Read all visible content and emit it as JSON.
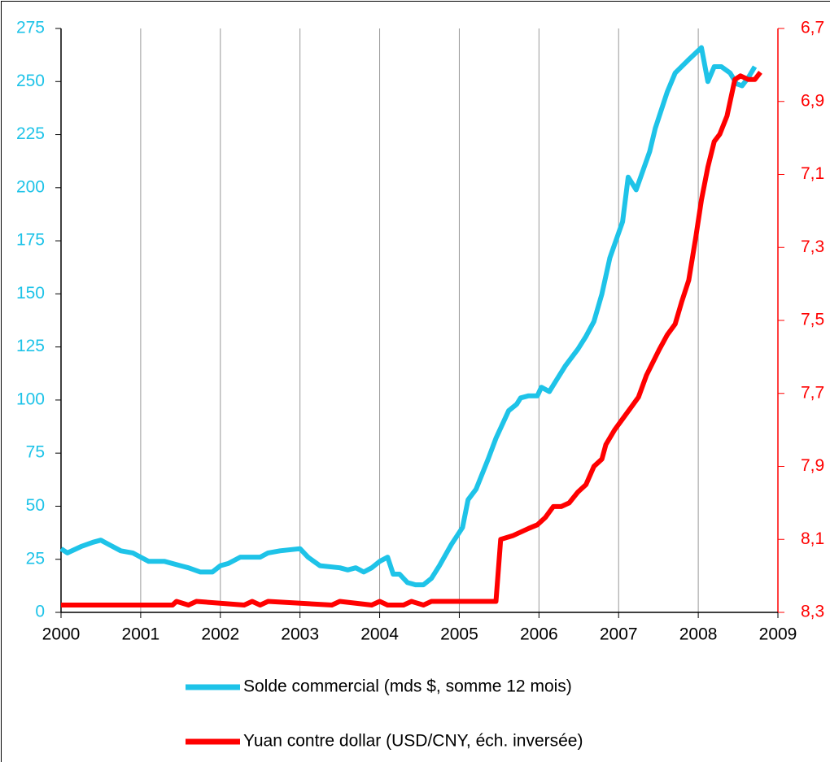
{
  "chart_data": {
    "type": "line",
    "xlim": [
      2000,
      2009
    ],
    "xticks": [
      2000,
      2001,
      2002,
      2003,
      2004,
      2005,
      2006,
      2007,
      2008,
      2009
    ],
    "ylim": [
      0,
      275
    ],
    "yticks": [
      0,
      25,
      50,
      75,
      100,
      125,
      150,
      175,
      200,
      225,
      250,
      275
    ],
    "y2lim": [
      8.3,
      6.7
    ],
    "y2ticks": [
      {
        "value": 8.3,
        "label": "8,3"
      },
      {
        "value": 8.1,
        "label": "8,1"
      },
      {
        "value": 7.9,
        "label": "7,9"
      },
      {
        "value": 7.7,
        "label": "7,7"
      },
      {
        "value": 7.5,
        "label": "7,5"
      },
      {
        "value": 7.3,
        "label": "7,3"
      },
      {
        "value": 7.1,
        "label": "7,1"
      },
      {
        "value": 6.9,
        "label": "6,9"
      },
      {
        "value": 6.7,
        "label": "6,7"
      }
    ],
    "y2_inverted": true,
    "grid": true,
    "legend": "bottom",
    "ycolor": "#1ec3e8",
    "y2color": "#ff0000",
    "series": [
      {
        "name": "Solde commercial (mds $, somme 12 mois)",
        "color": "#1ec3e8",
        "x": [
          2000.0,
          2000.08,
          2000.25,
          2000.4,
          2000.5,
          2000.6,
          2000.75,
          2000.9,
          2001.0,
          2001.1,
          2001.3,
          2001.5,
          2001.6,
          2001.75,
          2001.9,
          2002.0,
          2002.1,
          2002.25,
          2002.5,
          2002.6,
          2002.75,
          2003.0,
          2003.1,
          2003.25,
          2003.5,
          2003.6,
          2003.7,
          2003.8,
          2003.9,
          2004.0,
          2004.1,
          2004.17,
          2004.25,
          2004.35,
          2004.45,
          2004.55,
          2004.65,
          2004.75,
          2004.9,
          2005.04,
          2005.11,
          2005.21,
          2005.36,
          2005.46,
          2005.62,
          2005.72,
          2005.77,
          2005.87,
          2005.98,
          2006.03,
          2006.13,
          2006.23,
          2006.33,
          2006.49,
          2006.59,
          2006.69,
          2006.79,
          2006.89,
          2007.05,
          2007.12,
          2007.22,
          2007.39,
          2007.46,
          2007.61,
          2007.71,
          2007.87,
          2008.04,
          2008.12,
          2008.2,
          2008.29,
          2008.4,
          2008.48,
          2008.55,
          2008.63,
          2008.71
        ],
        "values": [
          30,
          28,
          31,
          33,
          34,
          32,
          29,
          28,
          26,
          24,
          24,
          22,
          21,
          19,
          19,
          22,
          23,
          26,
          26,
          28,
          29,
          30,
          26,
          22,
          21,
          20,
          21,
          19,
          21,
          24,
          26,
          18,
          18,
          14,
          13,
          13,
          16,
          22,
          32,
          40,
          53,
          58,
          72,
          82,
          95,
          98,
          101,
          102,
          102,
          106,
          104,
          110,
          116,
          124,
          130,
          137,
          150,
          167,
          184,
          205,
          199,
          217,
          228,
          245,
          254,
          260,
          266,
          250,
          257,
          257,
          254,
          249,
          248,
          252,
          257
        ]
      },
      {
        "name": "Yuan contre dollar (USD/CNY, éch. inversée)",
        "color": "#ff0000",
        "axis": "y2",
        "x": [
          2000.0,
          2001.4,
          2001.45,
          2001.6,
          2001.7,
          2002.3,
          2002.4,
          2002.5,
          2002.6,
          2003.4,
          2003.5,
          2003.9,
          2004.0,
          2004.1,
          2004.3,
          2004.4,
          2004.55,
          2004.65,
          2005.46,
          2005.52,
          2005.67,
          2005.77,
          2005.87,
          2005.98,
          2006.08,
          2006.18,
          2006.28,
          2006.38,
          2006.49,
          2006.59,
          2006.69,
          2006.79,
          2006.84,
          2006.95,
          2007.05,
          2007.15,
          2007.25,
          2007.35,
          2007.51,
          2007.61,
          2007.71,
          2007.79,
          2007.88,
          2007.97,
          2008.04,
          2008.12,
          2008.2,
          2008.27,
          2008.36,
          2008.46,
          2008.53,
          2008.63,
          2008.71,
          2008.78
        ],
        "values": [
          8.28,
          8.28,
          8.27,
          8.28,
          8.27,
          8.28,
          8.27,
          8.28,
          8.27,
          8.28,
          8.27,
          8.28,
          8.27,
          8.28,
          8.28,
          8.27,
          8.28,
          8.27,
          8.27,
          8.1,
          8.09,
          8.08,
          8.07,
          8.06,
          8.04,
          8.01,
          8.01,
          8.0,
          7.97,
          7.95,
          7.9,
          7.88,
          7.84,
          7.8,
          7.77,
          7.74,
          7.71,
          7.65,
          7.58,
          7.54,
          7.51,
          7.45,
          7.39,
          7.27,
          7.17,
          7.08,
          7.01,
          6.99,
          6.94,
          6.84,
          6.83,
          6.84,
          6.84,
          6.82
        ]
      }
    ]
  }
}
